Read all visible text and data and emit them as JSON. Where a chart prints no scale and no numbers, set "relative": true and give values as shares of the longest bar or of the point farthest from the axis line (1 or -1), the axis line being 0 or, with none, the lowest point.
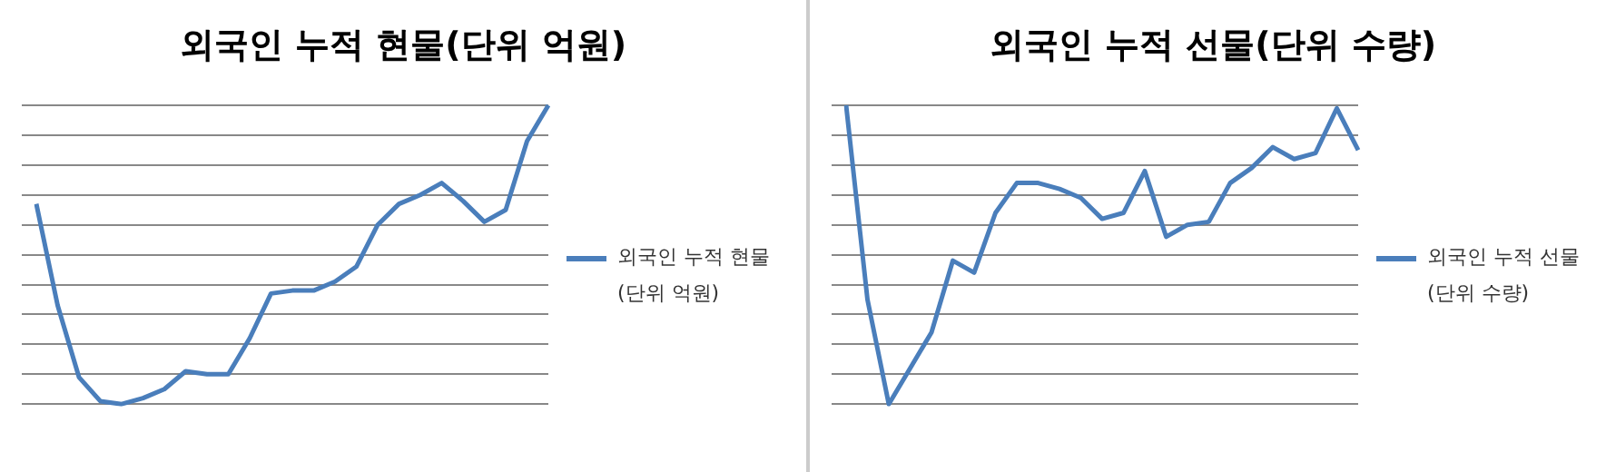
{
  "chart_data": [
    {
      "type": "line",
      "title": "외국인 누적 현물(단위 억원)",
      "categories": [
        null,
        null,
        null,
        null,
        null,
        null,
        null,
        null,
        null,
        null,
        null,
        null,
        null,
        null,
        null,
        null,
        null,
        null,
        null,
        null,
        null,
        null,
        null,
        null,
        null
      ],
      "relative": true,
      "grid": "y",
      "legend": "right",
      "marker": "none",
      "series": [
        {
          "name": "외국인 누적 현물(단위 억원)",
          "color": "#4a7ebb",
          "values": [
            0.67,
            0.33,
            0.09,
            0.01,
            0,
            0.02,
            0.05,
            0.11,
            0.1,
            0.1,
            0.22,
            0.37,
            0.38,
            0.38,
            0.41,
            0.46,
            0.6,
            0.67,
            0.7,
            0.74,
            0.68,
            0.61,
            0.65,
            0.88,
            1
          ]
        }
      ]
    },
    {
      "type": "line",
      "title": "외국인 누적 선물(단위 수량)",
      "categories": [
        null,
        null,
        null,
        null,
        null,
        null,
        null,
        null,
        null,
        null,
        null,
        null,
        null,
        null,
        null,
        null,
        null,
        null,
        null,
        null,
        null,
        null,
        null,
        null,
        null
      ],
      "relative": true,
      "grid": "y",
      "legend": "right",
      "marker": "none",
      "series": [
        {
          "name": "외국인 누적 선물(단위 수량)",
          "color": "#4a7ebb",
          "values": [
            1,
            0.35,
            0,
            0.12,
            0.24,
            0.48,
            0.44,
            0.64,
            0.74,
            0.74,
            0.72,
            0.69,
            0.62,
            0.64,
            0.78,
            0.56,
            0.6,
            0.61,
            0.74,
            0.79,
            0.86,
            0.82,
            0.84,
            0.99,
            0.85
          ]
        }
      ]
    }
  ]
}
